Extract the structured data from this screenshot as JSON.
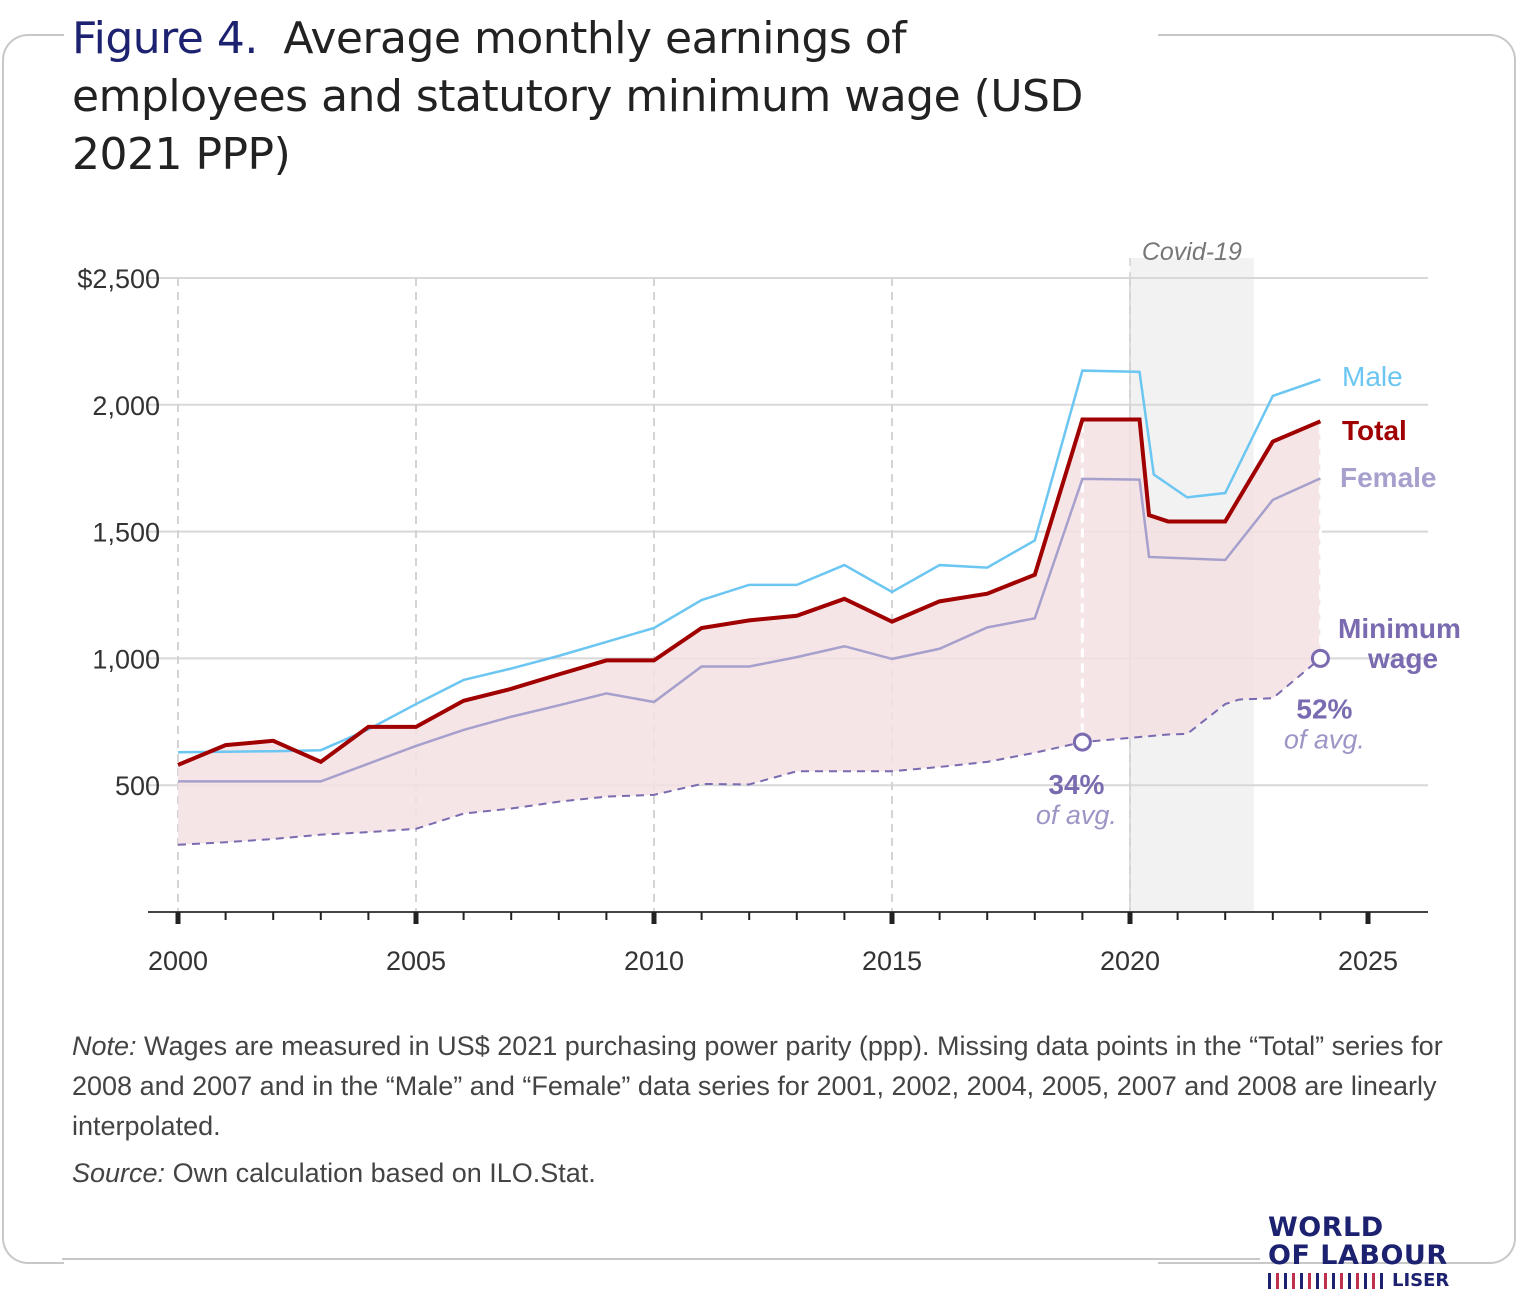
{
  "figure_label": "Figure 4.",
  "figure_title": "Average monthly earnings of employees and statutory minimum wage (USD 2021 PPP)",
  "note_label": "Note:",
  "note_text": " Wages are measured in US$ 2021 purchasing power parity (ppp). Missing data points in the “Total” series for 2008 and 2007 and in the “Male” and “Female” data series for 2001, 2002, 2004, 2005, 2007 and 2008 are linearly interpolated.",
  "source_label": "Source:",
  "source_text": " Own calculation based on ILO.Stat.",
  "logo": {
    "line1": "WORLD",
    "line2": "OF LABOUR",
    "line3": "LISER"
  },
  "colors": {
    "male": "#6cc6f2",
    "total": "#a00000",
    "female": "#a6a0cc",
    "minimum": "#7a6ab0",
    "band": "#f4e1e3",
    "covid": "#f2f2f2",
    "title_accent": "#1c2270"
  },
  "chart_data": {
    "type": "line",
    "xlim": [
      2000,
      2025
    ],
    "ylim": [
      0,
      2500
    ],
    "xticks": [
      2000,
      2005,
      2010,
      2015,
      2020,
      2025
    ],
    "yticks": [
      500,
      1000,
      1500,
      2000,
      2500
    ],
    "ytick_labels": [
      "500",
      "1,000",
      "1,500",
      "2,000",
      "$2,500"
    ],
    "shaded_region": {
      "label": "Covid-19",
      "x": [
        2020,
        2022.6
      ]
    },
    "series": [
      {
        "name": "Male",
        "color": "#6cc6f2",
        "width": 2.5,
        "points": [
          [
            2000,
            630
          ],
          [
            2001,
            632
          ],
          [
            2002,
            634
          ],
          [
            2003,
            638
          ],
          [
            2004,
            720
          ],
          [
            2005,
            820
          ],
          [
            2006,
            915
          ],
          [
            2007,
            960
          ],
          [
            2008,
            1010
          ],
          [
            2009,
            1065
          ],
          [
            2010,
            1120
          ],
          [
            2011,
            1230
          ],
          [
            2012,
            1290
          ],
          [
            2013,
            1290
          ],
          [
            2014,
            1368
          ],
          [
            2015,
            1262
          ],
          [
            2016,
            1368
          ],
          [
            2017,
            1358
          ],
          [
            2018,
            1465
          ],
          [
            2019,
            2135
          ],
          [
            2020.2,
            2130
          ],
          [
            2020.5,
            1725
          ],
          [
            2021.2,
            1635
          ],
          [
            2022,
            1652
          ],
          [
            2023,
            2035
          ],
          [
            2024,
            2100
          ]
        ]
      },
      {
        "name": "Total",
        "color": "#a00000",
        "width": 4,
        "points": [
          [
            2000,
            580
          ],
          [
            2001,
            658
          ],
          [
            2002,
            675
          ],
          [
            2003,
            592
          ],
          [
            2004,
            730
          ],
          [
            2005,
            730
          ],
          [
            2006,
            833
          ],
          [
            2007,
            880
          ],
          [
            2008,
            937
          ],
          [
            2009,
            992
          ],
          [
            2010,
            992
          ],
          [
            2011,
            1120
          ],
          [
            2012,
            1150
          ],
          [
            2013,
            1168
          ],
          [
            2014,
            1235
          ],
          [
            2015,
            1145
          ],
          [
            2016,
            1225
          ],
          [
            2017,
            1255
          ],
          [
            2018,
            1330
          ],
          [
            2019,
            1942
          ],
          [
            2020.2,
            1942
          ],
          [
            2020.4,
            1565
          ],
          [
            2020.8,
            1540
          ],
          [
            2021.5,
            1540
          ],
          [
            2022,
            1540
          ],
          [
            2023,
            1855
          ],
          [
            2024,
            1935
          ]
        ]
      },
      {
        "name": "Female",
        "color": "#a6a0cc",
        "width": 2.5,
        "points": [
          [
            2000,
            515
          ],
          [
            2001,
            515
          ],
          [
            2002,
            515
          ],
          [
            2003,
            515
          ],
          [
            2004,
            585
          ],
          [
            2005,
            655
          ],
          [
            2006,
            718
          ],
          [
            2007,
            770
          ],
          [
            2008,
            815
          ],
          [
            2009,
            862
          ],
          [
            2010,
            828
          ],
          [
            2011,
            968
          ],
          [
            2012,
            968
          ],
          [
            2013,
            1005
          ],
          [
            2014,
            1048
          ],
          [
            2015,
            998
          ],
          [
            2016,
            1038
          ],
          [
            2017,
            1122
          ],
          [
            2018,
            1158
          ],
          [
            2019,
            1708
          ],
          [
            2020.2,
            1705
          ],
          [
            2020.4,
            1400
          ],
          [
            2022,
            1388
          ],
          [
            2023,
            1625
          ],
          [
            2024,
            1710
          ]
        ]
      },
      {
        "name": "Minimum wage",
        "color": "#7a6ab0",
        "width": 2,
        "dashed": true,
        "points": [
          [
            2000,
            265
          ],
          [
            2001,
            275
          ],
          [
            2002,
            288
          ],
          [
            2003,
            305
          ],
          [
            2004,
            315
          ],
          [
            2005,
            328
          ],
          [
            2006,
            388
          ],
          [
            2007,
            408
          ],
          [
            2008,
            435
          ],
          [
            2009,
            455
          ],
          [
            2010,
            462
          ],
          [
            2011,
            505
          ],
          [
            2012,
            503
          ],
          [
            2013,
            555
          ],
          [
            2014,
            555
          ],
          [
            2015,
            555
          ],
          [
            2016,
            572
          ],
          [
            2017,
            592
          ],
          [
            2018,
            628
          ],
          [
            2019,
            670
          ],
          [
            2020.2,
            690
          ],
          [
            2020.8,
            700
          ],
          [
            2021.2,
            702
          ],
          [
            2022,
            820
          ],
          [
            2022.3,
            838
          ],
          [
            2023,
            843
          ],
          [
            2024,
            1000
          ]
        ]
      }
    ],
    "series_labels": {
      "male": "Male",
      "total": "Total",
      "female": "Female",
      "minimum_line1": "Minimum",
      "minimum_line2": "wage"
    },
    "annotations": [
      {
        "x": 2019,
        "y": 670,
        "pct": "34%",
        "sub": "of avg."
      },
      {
        "x": 2024,
        "y": 1000,
        "pct": "52%",
        "sub": "of avg."
      }
    ]
  }
}
